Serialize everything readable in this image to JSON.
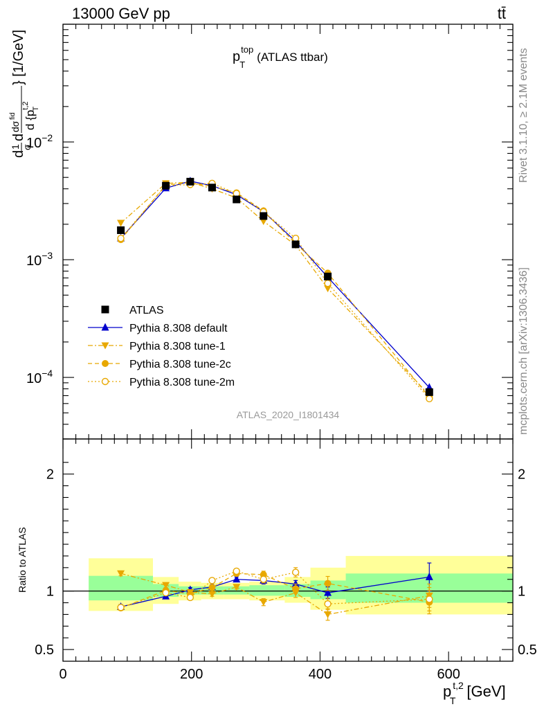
{
  "header": {
    "left": "13000 GeV pp",
    "right": "tt̄"
  },
  "plot_title": {
    "main": "p",
    "sup": "top",
    "sub": "T",
    "suffix": "(ATLAS ttbar)"
  },
  "side_labels": {
    "rivet": "Rivet 3.1.10, ≥ 2.1M events",
    "mcplots": "mcplots.cern.ch [arXiv:1306.3436]"
  },
  "analysis_label": "ATLAS_2020_I1801434",
  "y_axis_label": "d 1/σ dσ^fid / d {p_T^t,2} [1/GeV]",
  "y_axis_parts": {
    "d1": "d",
    "one": "1",
    "sigma": "σ",
    "d2": "d",
    "dsigma": "dσ",
    "fid": "fid",
    "d3": "d {p",
    "t2": "t,2",
    "T": "T",
    "close": "} [1/GeV]"
  },
  "x_axis_label": {
    "main": "p",
    "sup": "t,2",
    "sub": "T",
    "unit": "[GeV]"
  },
  "ratio_axis_label": "Ratio to ATLAS",
  "legend_position": "middle-left",
  "colors": {
    "atlas": "#000000",
    "default": "#0000cc",
    "tune": "#e8a800",
    "band_inner": "#99ff99",
    "band_outer": "#ffff99"
  },
  "chart_data": {
    "type": "line",
    "x_scale": "linear",
    "y_scale": "log",
    "xlim": [
      0,
      700
    ],
    "ylim": [
      3e-05,
      0.1
    ],
    "ratio_ylim": [
      0.4,
      2.3
    ],
    "x_ticks": [
      0,
      200,
      400,
      600
    ],
    "y_ticks": [
      {
        "value": 0.01,
        "base": "10",
        "exp": "−2"
      },
      {
        "value": 0.001,
        "base": "10",
        "exp": "−3"
      },
      {
        "value": 0.0001,
        "base": "10",
        "exp": "−4"
      }
    ],
    "ratio_ticks": [
      {
        "value": 2,
        "label": "2"
      },
      {
        "value": 1,
        "label": "1"
      },
      {
        "value": 0.5,
        "label": "0.5"
      }
    ],
    "bins": [
      {
        "lo": 40,
        "hi": 140,
        "x": 90
      },
      {
        "lo": 140,
        "hi": 180,
        "x": 160
      },
      {
        "lo": 180,
        "hi": 215,
        "x": 198
      },
      {
        "lo": 215,
        "hi": 250,
        "x": 232
      },
      {
        "lo": 250,
        "hi": 290,
        "x": 270
      },
      {
        "lo": 290,
        "hi": 345,
        "x": 312
      },
      {
        "lo": 345,
        "hi": 385,
        "x": 362
      },
      {
        "lo": 385,
        "hi": 440,
        "x": 412
      },
      {
        "lo": 440,
        "hi": 700,
        "x": 570
      }
    ],
    "band_inner": [
      [
        0.92,
        1.13
      ],
      [
        0.95,
        1.06
      ],
      [
        0.97,
        1.04
      ],
      [
        0.97,
        1.04
      ],
      [
        0.97,
        1.04
      ],
      [
        0.96,
        1.05
      ],
      [
        0.95,
        1.06
      ],
      [
        0.93,
        1.09
      ],
      [
        0.9,
        1.15
      ]
    ],
    "band_outer": [
      [
        0.83,
        1.28
      ],
      [
        0.89,
        1.12
      ],
      [
        0.92,
        1.08
      ],
      [
        0.93,
        1.07
      ],
      [
        0.93,
        1.07
      ],
      [
        0.92,
        1.08
      ],
      [
        0.9,
        1.12
      ],
      [
        0.84,
        1.2
      ],
      [
        0.8,
        1.3
      ]
    ],
    "series": [
      {
        "name": "ATLAS",
        "marker": "square",
        "line": "none",
        "values": [
          0.00178,
          0.00425,
          0.0046,
          0.0041,
          0.00325,
          0.00235,
          0.00135,
          0.00072,
          7.5e-05
        ],
        "ratio": [
          1,
          1,
          1,
          1,
          1,
          1,
          1,
          1,
          1
        ],
        "ratio_err": [
          0,
          0,
          0,
          0,
          0,
          0,
          0,
          0,
          0
        ]
      },
      {
        "name": "Pythia 8.308 default",
        "marker": "triangle-up",
        "line": "solid",
        "values": [
          0.00152,
          0.00405,
          0.00465,
          0.00425,
          0.00357,
          0.00256,
          0.00143,
          0.00071,
          8.2e-05
        ],
        "ratio": [
          0.865,
          0.955,
          1.01,
          1.035,
          1.1,
          1.09,
          1.06,
          0.985,
          1.12
        ],
        "ratio_err": [
          0.02,
          0.02,
          0.02,
          0.02,
          0.02,
          0.03,
          0.03,
          0.05,
          0.12
        ]
      },
      {
        "name": "Pythia 8.308 tune-1",
        "marker": "triangle-down",
        "line": "dashdot",
        "values": [
          0.00205,
          0.00445,
          0.00455,
          0.004,
          0.00335,
          0.00212,
          0.00133,
          0.00057,
          7.1e-05
        ],
        "ratio": [
          1.15,
          1.05,
          0.99,
          0.975,
          1.035,
          0.905,
          0.985,
          0.8,
          0.96
        ],
        "ratio_err": [
          0.02,
          0.02,
          0.02,
          0.02,
          0.02,
          0.03,
          0.04,
          0.05,
          0.1
        ]
      },
      {
        "name": "Pythia 8.308 tune-2c",
        "marker": "circle",
        "line": "dashed",
        "values": [
          0.00148,
          0.00432,
          0.0045,
          0.0042,
          0.0037,
          0.0026,
          0.00137,
          0.00077,
          6.8e-05
        ],
        "ratio": [
          0.855,
          1.005,
          0.975,
          1.03,
          1.15,
          1.14,
          1.02,
          1.065,
          0.905
        ],
        "ratio_err": [
          0.02,
          0.02,
          0.02,
          0.02,
          0.02,
          0.03,
          0.04,
          0.06,
          0.1
        ]
      },
      {
        "name": "Pythia 8.308 tune-2m",
        "marker": "circle-open",
        "line": "dotted",
        "values": [
          0.00152,
          0.00425,
          0.00435,
          0.00445,
          0.00365,
          0.00255,
          0.00152,
          0.00063,
          6.6e-05
        ],
        "ratio": [
          0.86,
          0.985,
          0.945,
          1.09,
          1.17,
          1.1,
          1.16,
          0.89,
          0.93
        ],
        "ratio_err": [
          0.02,
          0.02,
          0.02,
          0.02,
          0.02,
          0.03,
          0.04,
          0.05,
          0.1
        ]
      }
    ]
  }
}
